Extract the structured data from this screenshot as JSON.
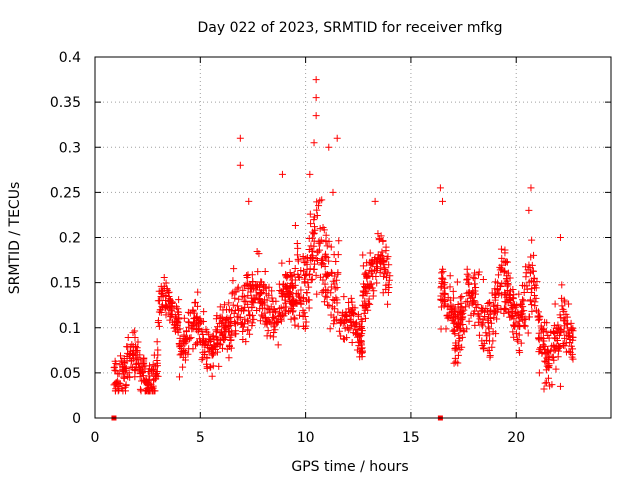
{
  "chart_data": {
    "type": "scatter",
    "title": "Day 022 of 2023, SRMTID for receiver mfkg",
    "xlabel": "GPS time / hours",
    "ylabel": "SRMTID / TECUs",
    "xlim": [
      0,
      24.5
    ],
    "ylim": [
      0,
      0.4
    ],
    "x_ticks": [
      0,
      5,
      10,
      15,
      20
    ],
    "x_tick_labels": [
      "0",
      "5",
      "10",
      "15",
      "20"
    ],
    "y_ticks": [
      0,
      0.05,
      0.1,
      0.15,
      0.2,
      0.25,
      0.3,
      0.35,
      0.4
    ],
    "y_tick_labels": [
      "0",
      "0.05",
      "0.1",
      "0.15",
      "0.2",
      "0.25",
      "0.3",
      "0.35",
      "0.4"
    ],
    "grid": true,
    "marker": "+",
    "color": "#ff0000",
    "zero_markers": [
      {
        "x": 0.9,
        "y": 0
      },
      {
        "x": 16.4,
        "y": 0
      }
    ],
    "segments": [
      {
        "x_start": 0.9,
        "x_end": 3.0,
        "y_mid": 0.055,
        "y_spread": 0.022
      },
      {
        "x_start": 3.0,
        "x_end": 4.0,
        "y_mid": 0.12,
        "y_spread": 0.02
      },
      {
        "x_start": 4.0,
        "x_end": 6.5,
        "y_mid": 0.09,
        "y_spread": 0.025
      },
      {
        "x_start": 6.5,
        "x_end": 9.5,
        "y_mid": 0.125,
        "y_spread": 0.03
      },
      {
        "x_start": 9.5,
        "x_end": 11.6,
        "y_mid": 0.17,
        "y_spread": 0.045
      },
      {
        "x_start": 11.6,
        "x_end": 12.7,
        "y_mid": 0.1,
        "y_spread": 0.025
      },
      {
        "x_start": 12.7,
        "x_end": 14.0,
        "y_mid": 0.16,
        "y_spread": 0.03
      },
      {
        "x_start": 16.4,
        "x_end": 19.2,
        "y_mid": 0.12,
        "y_spread": 0.03
      },
      {
        "x_start": 19.2,
        "x_end": 21.0,
        "y_mid": 0.13,
        "y_spread": 0.035
      },
      {
        "x_start": 21.0,
        "x_end": 22.7,
        "y_mid": 0.085,
        "y_spread": 0.03
      }
    ],
    "peaks": [
      {
        "x": 6.9,
        "y": 0.31
      },
      {
        "x": 6.9,
        "y": 0.28
      },
      {
        "x": 7.3,
        "y": 0.24
      },
      {
        "x": 8.9,
        "y": 0.27
      },
      {
        "x": 10.2,
        "y": 0.27
      },
      {
        "x": 10.5,
        "y": 0.375
      },
      {
        "x": 10.5,
        "y": 0.355
      },
      {
        "x": 10.5,
        "y": 0.335
      },
      {
        "x": 10.4,
        "y": 0.305
      },
      {
        "x": 11.1,
        "y": 0.3
      },
      {
        "x": 11.5,
        "y": 0.31
      },
      {
        "x": 11.3,
        "y": 0.25
      },
      {
        "x": 13.3,
        "y": 0.24
      },
      {
        "x": 16.4,
        "y": 0.255
      },
      {
        "x": 16.5,
        "y": 0.24
      },
      {
        "x": 20.7,
        "y": 0.255
      },
      {
        "x": 20.6,
        "y": 0.23
      },
      {
        "x": 21.1,
        "y": 0.05
      },
      {
        "x": 22.1,
        "y": 0.035
      },
      {
        "x": 22.1,
        "y": 0.2
      }
    ]
  }
}
